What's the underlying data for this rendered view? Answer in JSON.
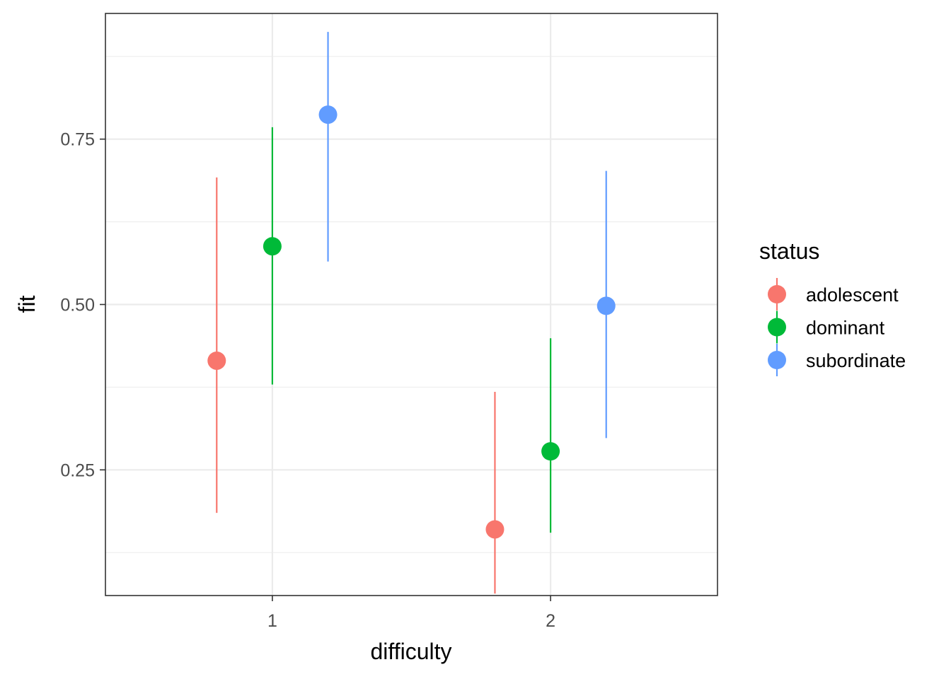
{
  "chart_data": {
    "type": "scatter",
    "xlabel": "difficulty",
    "ylabel": "fit",
    "categories": [
      "1",
      "2"
    ],
    "ylim": [
      0.06,
      0.94
    ],
    "yticks": [
      0.25,
      0.5,
      0.75
    ],
    "ytick_labels": [
      "0.25",
      "0.50",
      "0.75"
    ],
    "grid": true,
    "legend": {
      "title": "status",
      "position": "right"
    },
    "series": [
      {
        "name": "adolescent",
        "color": "#F8766D",
        "values": [
          0.415,
          0.16
        ],
        "lower": [
          0.185,
          0.063
        ],
        "upper": [
          0.692,
          0.368
        ]
      },
      {
        "name": "dominant",
        "color": "#00BA38",
        "values": [
          0.588,
          0.278
        ],
        "lower": [
          0.379,
          0.155
        ],
        "upper": [
          0.768,
          0.449
        ]
      },
      {
        "name": "subordinate",
        "color": "#619CFF",
        "values": [
          0.787,
          0.498
        ],
        "lower": [
          0.565,
          0.298
        ],
        "upper": [
          0.912,
          0.702
        ]
      }
    ]
  }
}
